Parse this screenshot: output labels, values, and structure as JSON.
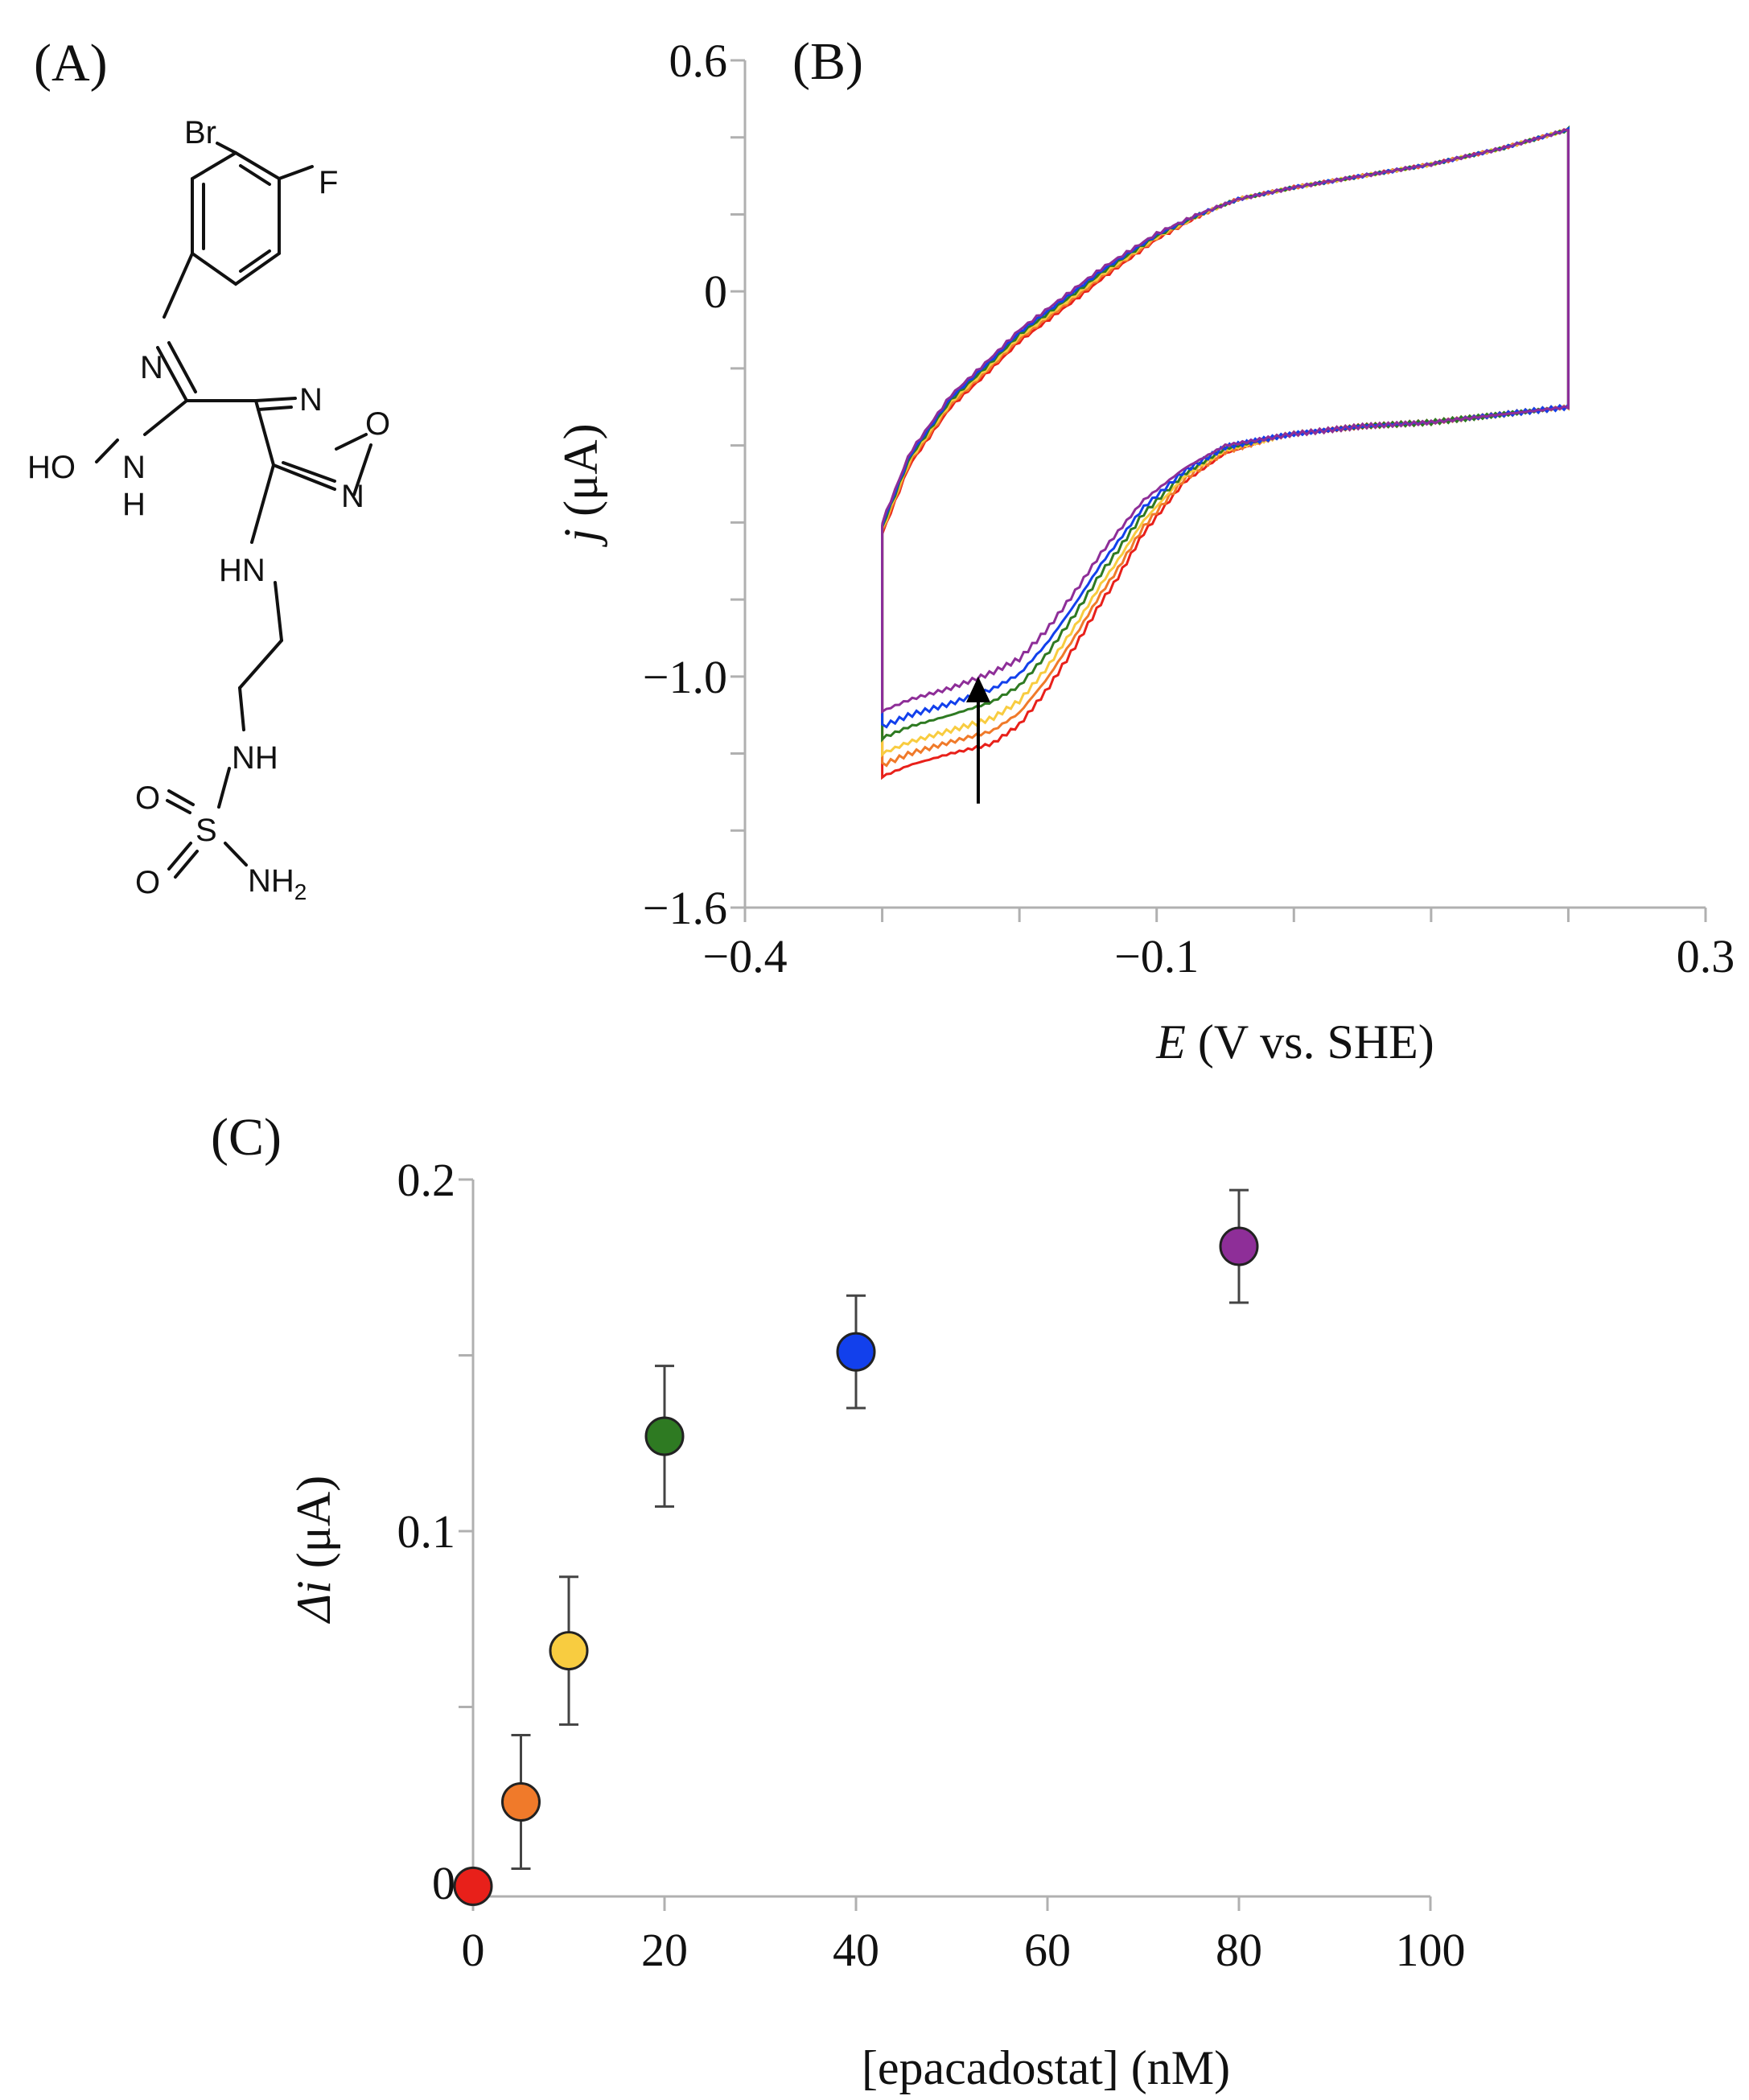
{
  "panels": {
    "a": {
      "label": "(A)",
      "molecule": {
        "name": "epacadostat",
        "atoms": [
          "Br",
          "F",
          "N",
          "N",
          "O",
          "N",
          "HO",
          "N",
          "H",
          "HN",
          "NH",
          "O",
          "S",
          "O",
          "NH",
          "2"
        ]
      }
    },
    "b": {
      "label": "(B)"
    },
    "c": {
      "label": "(C)"
    }
  },
  "chart_data": [
    {
      "id": "cv",
      "type": "line",
      "title": "",
      "xlabel": {
        "italic": "E",
        "rest": " (V vs. SHE)"
      },
      "ylabel": {
        "italic": "j",
        "rest": " (μA)"
      },
      "xlim": [
        -0.4,
        0.3
      ],
      "ylim": [
        -1.6,
        0.6
      ],
      "xticks": [
        -0.4,
        -0.3,
        -0.2,
        -0.1,
        0.0,
        0.1,
        0.2,
        0.3
      ],
      "xtick_labels": [
        {
          "value": -0.4,
          "text": "−0.4"
        },
        {
          "value": -0.1,
          "text": "−0.1"
        },
        {
          "value": 0.3,
          "text": "0.3"
        }
      ],
      "yticks": [
        -1.6,
        -1.4,
        -1.2,
        -1.0,
        -0.8,
        -0.6,
        -0.4,
        -0.2,
        0.0,
        0.2,
        0.4,
        0.6
      ],
      "ytick_labels": [
        {
          "value": 0.6,
          "text": "0.6"
        },
        {
          "value": 0.0,
          "text": "0"
        },
        {
          "value": -1.0,
          "text": "−1.0"
        },
        {
          "value": -1.6,
          "text": "−1.6"
        }
      ],
      "cv_window": {
        "e_start": -0.3,
        "e_end": 0.2
      },
      "anodic_branch": {
        "x": [
          -0.3,
          -0.28,
          -0.25,
          -0.22,
          -0.2,
          -0.17,
          -0.14,
          -0.1,
          -0.07,
          -0.04,
          0.0,
          0.05,
          0.1,
          0.15,
          0.2
        ],
        "y": [
          -0.6,
          -0.42,
          -0.27,
          -0.17,
          -0.1,
          -0.02,
          0.06,
          0.15,
          0.2,
          0.24,
          0.27,
          0.3,
          0.33,
          0.37,
          0.42
        ]
      },
      "cathodic_branch": {
        "x": [
          0.2,
          0.15,
          0.1,
          0.05,
          0.0,
          -0.05,
          -0.08,
          -0.11,
          -0.14,
          -0.16,
          -0.18,
          -0.2,
          -0.22,
          -0.25,
          -0.28,
          -0.3
        ],
        "y": [
          -0.3,
          -0.32,
          -0.34,
          -0.35,
          -0.37,
          -0.4,
          -0.46,
          -0.58,
          -0.75,
          -0.88,
          -1.0,
          -1.1,
          -1.16,
          -1.2,
          -1.23,
          -1.26
        ]
      },
      "cathodic_low_E_offset_by_concentration": [
        0.0,
        0.03,
        0.06,
        0.1,
        0.13,
        0.17
      ],
      "series": [
        {
          "name": "0 nM",
          "color": "#e8201a"
        },
        {
          "name": "5 nM",
          "color": "#f07a2a"
        },
        {
          "name": "10 nM",
          "color": "#f8cc40"
        },
        {
          "name": "20 nM",
          "color": "#2e7a22"
        },
        {
          "name": "40 nM",
          "color": "#1240ec"
        },
        {
          "name": "80 nM",
          "color": "#8e2e98"
        }
      ],
      "annotation": {
        "type": "arrow",
        "from": [
          -0.23,
          -1.33
        ],
        "to": [
          -0.23,
          -1.0
        ],
        "direction": "up"
      }
    },
    {
      "id": "titration",
      "type": "scatter",
      "title": "",
      "xlabel": "[epacadostat] (nM)",
      "ylabel": {
        "italic": "Δi",
        "rest": " (μA)"
      },
      "xlim": [
        0,
        100
      ],
      "ylim": [
        -0.005,
        0.2
      ],
      "xticks": [
        0,
        20,
        40,
        60,
        80,
        100
      ],
      "xtick_labels": [
        "0",
        "20",
        "40",
        "60",
        "80",
        "100"
      ],
      "yticks": [
        0.0,
        0.05,
        0.1,
        0.15,
        0.2
      ],
      "ytick_labels": [
        {
          "value": 0.0,
          "text": "0"
        },
        {
          "value": 0.1,
          "text": "0.1"
        },
        {
          "value": 0.2,
          "text": "0.2"
        }
      ],
      "points": [
        {
          "x": 0,
          "y": -0.001,
          "err": 0.0,
          "color": "#e8201a"
        },
        {
          "x": 5,
          "y": 0.023,
          "err": 0.019,
          "color": "#f07a2a"
        },
        {
          "x": 10,
          "y": 0.066,
          "err": 0.021,
          "color": "#f8cc40"
        },
        {
          "x": 20,
          "y": 0.127,
          "err": 0.02,
          "color": "#2e7a22"
        },
        {
          "x": 40,
          "y": 0.151,
          "err": 0.016,
          "color": "#1240ec"
        },
        {
          "x": 80,
          "y": 0.181,
          "err": 0.016,
          "color": "#8e2e98"
        }
      ]
    }
  ]
}
